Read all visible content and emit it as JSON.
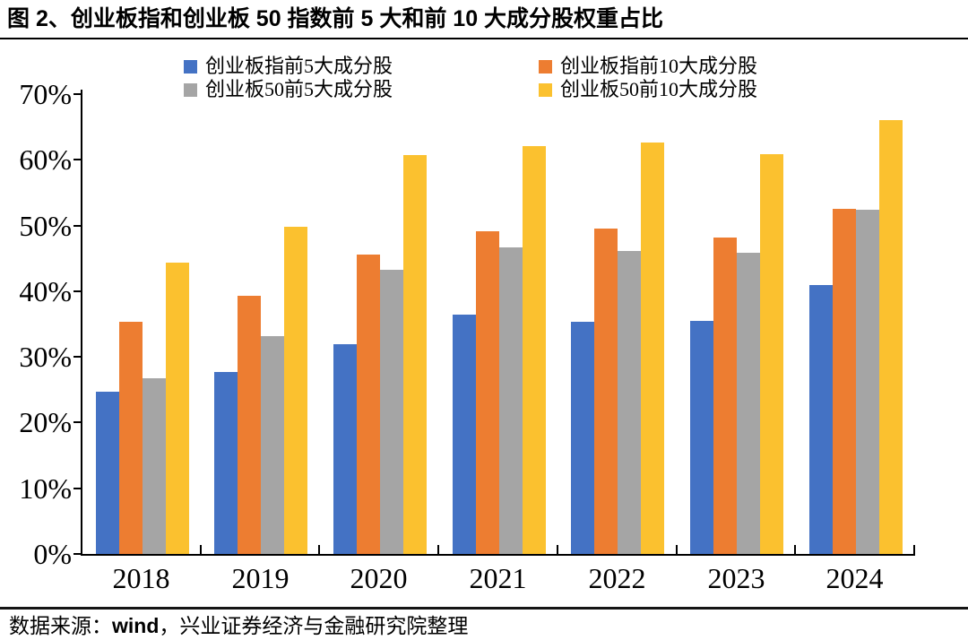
{
  "title": "图 2、创业板指和创业板 50 指数前 5 大和前 10 大成分股权重占比",
  "footer": {
    "prefix": "数据来源：",
    "wind": "wind",
    "suffix": "，兴业证券经济与金融研究院整理"
  },
  "colors": {
    "blue": "#4472C4",
    "orange": "#ED7D31",
    "gray": "#A5A5A5",
    "yellow": "#FBC12F",
    "axis": "#000000"
  },
  "chart_data": {
    "type": "bar",
    "categories": [
      "2018",
      "2019",
      "2020",
      "2021",
      "2022",
      "2023",
      "2024"
    ],
    "series": [
      {
        "name": "创业板指前5大成分股",
        "color_key": "blue",
        "values": [
          24.7,
          27.7,
          31.9,
          36.4,
          35.4,
          35.5,
          41.0
        ]
      },
      {
        "name": "创业板指前10大成分股",
        "color_key": "orange",
        "values": [
          35.3,
          39.3,
          45.6,
          49.1,
          49.5,
          48.2,
          52.6
        ]
      },
      {
        "name": "创业板50前5大成分股",
        "color_key": "gray",
        "values": [
          26.7,
          33.1,
          43.3,
          46.6,
          46.1,
          45.8,
          52.4
        ]
      },
      {
        "name": "创业板50前10大成分股",
        "color_key": "yellow",
        "values": [
          44.3,
          49.8,
          60.7,
          62.1,
          62.6,
          60.8,
          66.0
        ]
      }
    ],
    "ylabel": "",
    "xlabel": "",
    "ylim": [
      0,
      70
    ],
    "ytick_step": 10,
    "ytick_labels": [
      "0%",
      "10%",
      "20%",
      "30%",
      "40%",
      "50%",
      "60%",
      "70%"
    ],
    "grid": false,
    "legend_position": "top"
  }
}
